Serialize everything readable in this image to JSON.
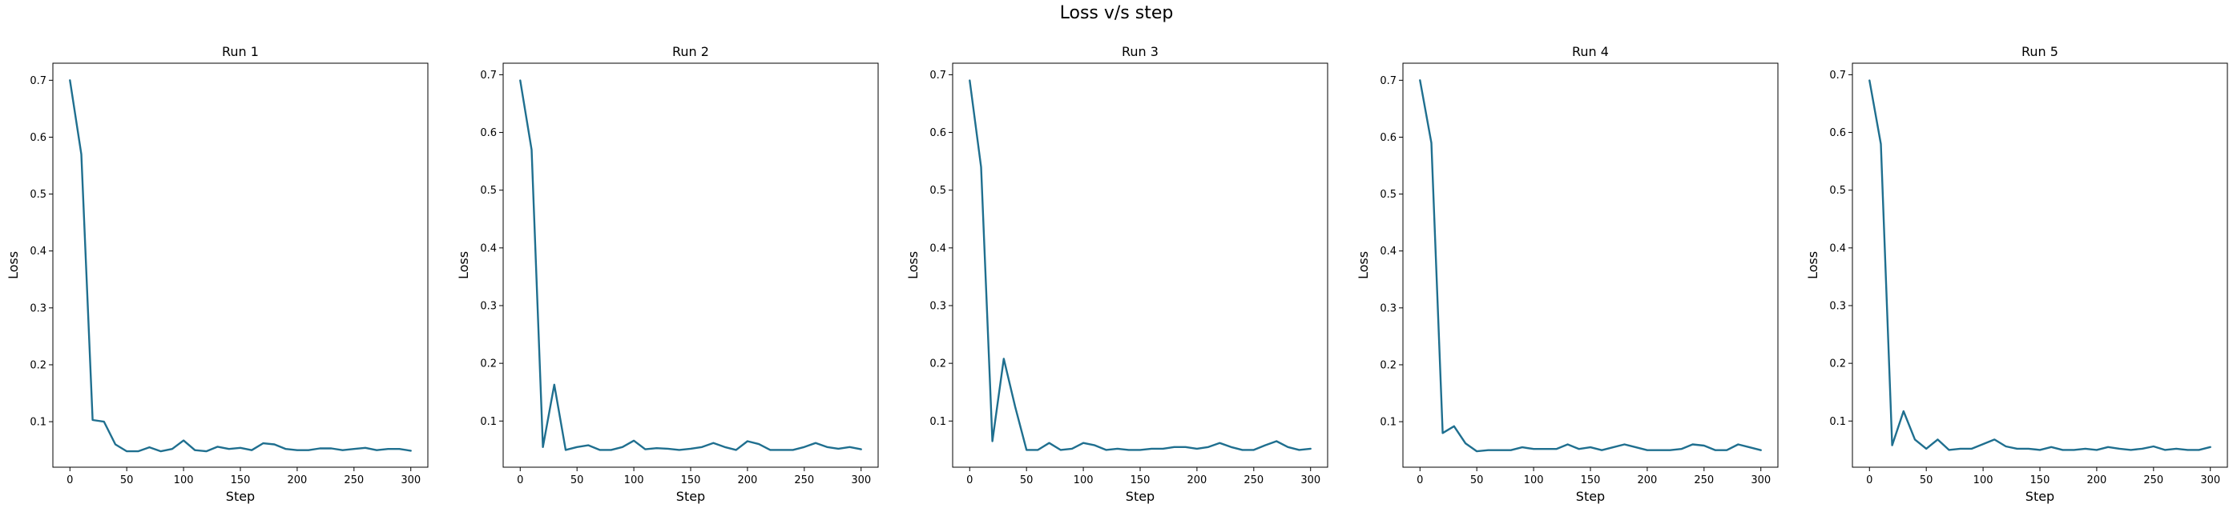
{
  "figure_title": "Loss v/s step",
  "chart_data": [
    {
      "type": "line",
      "title": "Run 1",
      "xlabel": "Step",
      "ylabel": "Loss",
      "xlim": [
        -15,
        315
      ],
      "ylim": [
        0.02,
        0.73
      ],
      "xticks": [
        0,
        50,
        100,
        150,
        200,
        250,
        300
      ],
      "yticks": [
        0.1,
        0.2,
        0.3,
        0.4,
        0.5,
        0.6,
        0.7
      ],
      "grid": false,
      "color": "#1f6f8f",
      "x": [
        0,
        10,
        20,
        30,
        40,
        50,
        60,
        70,
        80,
        90,
        100,
        110,
        120,
        130,
        140,
        150,
        160,
        170,
        180,
        190,
        200,
        210,
        220,
        230,
        240,
        250,
        260,
        270,
        280,
        290,
        300
      ],
      "y": [
        0.7,
        0.57,
        0.103,
        0.1,
        0.06,
        0.048,
        0.048,
        0.055,
        0.048,
        0.052,
        0.067,
        0.05,
        0.048,
        0.056,
        0.052,
        0.054,
        0.05,
        0.062,
        0.06,
        0.052,
        0.05,
        0.05,
        0.053,
        0.053,
        0.05,
        0.052,
        0.054,
        0.05,
        0.052,
        0.052,
        0.049
      ]
    },
    {
      "type": "line",
      "title": "Run 2",
      "xlabel": "Step",
      "ylabel": "Loss",
      "xlim": [
        -15,
        315
      ],
      "ylim": [
        0.02,
        0.72
      ],
      "xticks": [
        0,
        50,
        100,
        150,
        200,
        250,
        300
      ],
      "yticks": [
        0.1,
        0.2,
        0.3,
        0.4,
        0.5,
        0.6,
        0.7
      ],
      "grid": false,
      "color": "#1f6f8f",
      "x": [
        0,
        10,
        20,
        30,
        40,
        50,
        60,
        70,
        80,
        90,
        100,
        110,
        120,
        130,
        140,
        150,
        160,
        170,
        180,
        190,
        200,
        210,
        220,
        230,
        240,
        250,
        260,
        270,
        280,
        290,
        300
      ],
      "y": [
        0.69,
        0.57,
        0.055,
        0.163,
        0.05,
        0.055,
        0.058,
        0.05,
        0.05,
        0.055,
        0.066,
        0.051,
        0.053,
        0.052,
        0.05,
        0.052,
        0.055,
        0.062,
        0.055,
        0.05,
        0.065,
        0.06,
        0.05,
        0.05,
        0.05,
        0.055,
        0.062,
        0.055,
        0.052,
        0.055,
        0.051
      ]
    },
    {
      "type": "line",
      "title": "Run 3",
      "xlabel": "Step",
      "ylabel": "Loss",
      "xlim": [
        -15,
        315
      ],
      "ylim": [
        0.02,
        0.72
      ],
      "xticks": [
        0,
        50,
        100,
        150,
        200,
        250,
        300
      ],
      "yticks": [
        0.1,
        0.2,
        0.3,
        0.4,
        0.5,
        0.6,
        0.7
      ],
      "grid": false,
      "color": "#1f6f8f",
      "x": [
        0,
        10,
        20,
        30,
        40,
        50,
        60,
        70,
        80,
        90,
        100,
        110,
        120,
        130,
        140,
        150,
        160,
        170,
        180,
        190,
        200,
        210,
        220,
        230,
        240,
        250,
        260,
        270,
        280,
        290,
        300
      ],
      "y": [
        0.69,
        0.54,
        0.065,
        0.208,
        0.125,
        0.05,
        0.05,
        0.062,
        0.05,
        0.052,
        0.062,
        0.058,
        0.05,
        0.052,
        0.05,
        0.05,
        0.052,
        0.052,
        0.055,
        0.055,
        0.052,
        0.055,
        0.062,
        0.055,
        0.05,
        0.05,
        0.058,
        0.065,
        0.055,
        0.05,
        0.052
      ]
    },
    {
      "type": "line",
      "title": "Run 4",
      "xlabel": "Step",
      "ylabel": "Loss",
      "xlim": [
        -15,
        315
      ],
      "ylim": [
        0.02,
        0.73
      ],
      "xticks": [
        0,
        50,
        100,
        150,
        200,
        250,
        300
      ],
      "yticks": [
        0.1,
        0.2,
        0.3,
        0.4,
        0.5,
        0.6,
        0.7
      ],
      "grid": false,
      "color": "#1f6f8f",
      "x": [
        0,
        10,
        20,
        30,
        40,
        50,
        60,
        70,
        80,
        90,
        100,
        110,
        120,
        130,
        140,
        150,
        160,
        170,
        180,
        190,
        200,
        210,
        220,
        230,
        240,
        250,
        260,
        270,
        280,
        290,
        300
      ],
      "y": [
        0.7,
        0.59,
        0.08,
        0.092,
        0.062,
        0.048,
        0.05,
        0.05,
        0.05,
        0.055,
        0.052,
        0.052,
        0.052,
        0.06,
        0.052,
        0.055,
        0.05,
        0.055,
        0.06,
        0.055,
        0.05,
        0.05,
        0.05,
        0.052,
        0.06,
        0.058,
        0.05,
        0.05,
        0.06,
        0.055,
        0.05
      ]
    },
    {
      "type": "line",
      "title": "Run 5",
      "xlabel": "Step",
      "ylabel": "Loss",
      "xlim": [
        -15,
        315
      ],
      "ylim": [
        0.02,
        0.72
      ],
      "xticks": [
        0,
        50,
        100,
        150,
        200,
        250,
        300
      ],
      "yticks": [
        0.1,
        0.2,
        0.3,
        0.4,
        0.5,
        0.6,
        0.7
      ],
      "grid": false,
      "color": "#1f6f8f",
      "x": [
        0,
        10,
        20,
        30,
        40,
        50,
        60,
        70,
        80,
        90,
        100,
        110,
        120,
        130,
        140,
        150,
        160,
        170,
        180,
        190,
        200,
        210,
        220,
        230,
        240,
        250,
        260,
        270,
        280,
        290,
        300
      ],
      "y": [
        0.69,
        0.58,
        0.058,
        0.117,
        0.068,
        0.052,
        0.068,
        0.05,
        0.052,
        0.052,
        0.06,
        0.068,
        0.056,
        0.052,
        0.052,
        0.05,
        0.055,
        0.05,
        0.05,
        0.052,
        0.05,
        0.055,
        0.052,
        0.05,
        0.052,
        0.056,
        0.05,
        0.052,
        0.05,
        0.05,
        0.055
      ]
    }
  ]
}
